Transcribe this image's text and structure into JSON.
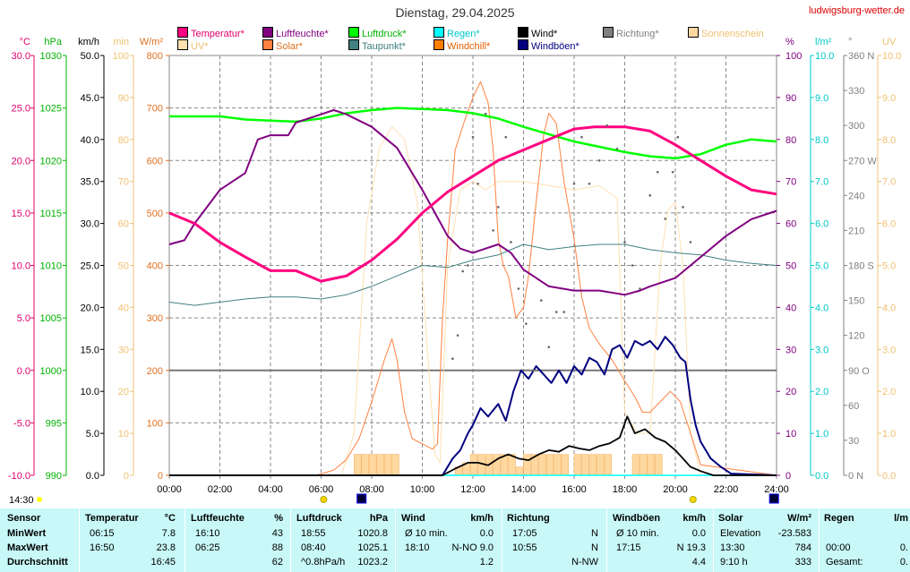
{
  "title": "Dienstag, 29.04.2025",
  "site": "ludwigsburg-wetter.de",
  "axes": [
    {
      "unit": "°C",
      "color": "#e0006e",
      "ticks": [
        "30.0",
        "25.0",
        "20.0",
        "15.0",
        "10.0",
        "5.0",
        "0.0",
        "-5.0",
        "-10.0"
      ]
    },
    {
      "unit": "hPa",
      "color": "#00b000",
      "ticks": [
        "1030",
        "1025",
        "1020",
        "1015",
        "1010",
        "1005",
        "1000",
        "995",
        "990"
      ]
    },
    {
      "unit": "km/h",
      "color": "#000000",
      "ticks": [
        "50.0",
        "45.0",
        "40.0",
        "35.0",
        "30.0",
        "25.0",
        "20.0",
        "15.0",
        "10.0",
        "5.0",
        "0.0"
      ]
    },
    {
      "unit": "min",
      "color": "#f0c070",
      "ticks": [
        "100",
        "90",
        "80",
        "70",
        "60",
        "50",
        "40",
        "30",
        "20",
        "10",
        "0"
      ]
    },
    {
      "unit": "W/m²",
      "color": "#e07020",
      "ticks": [
        "800",
        "700",
        "600",
        "500",
        "400",
        "300",
        "200",
        "100",
        "0"
      ]
    },
    {
      "unit": "%",
      "color": "#800080",
      "ticks": [
        "100",
        "90",
        "80",
        "70",
        "60",
        "50",
        "40",
        "30",
        "20",
        "10",
        "0"
      ]
    },
    {
      "unit": "l/m²",
      "color": "#00c8c8",
      "ticks": [
        "10.0",
        "9.0",
        "8.0",
        "7.0",
        "6.0",
        "5.0",
        "4.0",
        "3.0",
        "2.0",
        "1.0",
        "0.0"
      ]
    },
    {
      "unit": "°",
      "color": "#808080",
      "ticks": [
        "360 N",
        "330",
        "300",
        "270 W",
        "240",
        "210",
        "180 S",
        "150",
        "120",
        "90 O",
        "60",
        "30",
        "0 N"
      ]
    },
    {
      "unit": "UV",
      "color": "#f0c070",
      "ticks": [
        "10.0",
        "9.0",
        "8.0",
        "7.0",
        "6.0",
        "5.0",
        "4.0",
        "3.0",
        "2.0",
        "1.0",
        "0.0"
      ]
    }
  ],
  "xticks": [
    "00:00",
    "02:00",
    "04:00",
    "06:00",
    "08:00",
    "10:00",
    "12:00",
    "14:00",
    "16:00",
    "18:00",
    "20:00",
    "22:00",
    "24:00"
  ],
  "corner_time": "14:30",
  "legend": [
    {
      "label": "Temperatur*",
      "color": "#ff0080",
      "text": "#e0006e"
    },
    {
      "label": "Luftfeuchte*",
      "color": "#800080",
      "text": "#800080"
    },
    {
      "label": "Luftdruck*",
      "color": "#00ff00",
      "text": "#00b000"
    },
    {
      "label": "Regen*",
      "color": "#00ffff",
      "text": "#00c8c8"
    },
    {
      "label": "Wind*",
      "color": "#000000",
      "text": "#000000"
    },
    {
      "label": "Richtung*",
      "color": "#808080",
      "text": "#808080"
    },
    {
      "label": "Sonnenschein",
      "color": "#ffd8a0",
      "text": "#f0c070"
    },
    {
      "label": "UV*",
      "color": "#ffe0b0",
      "text": "#f0c070"
    },
    {
      "label": "Solar*",
      "color": "#ff8040",
      "text": "#e07020"
    },
    {
      "label": "Taupunkt*",
      "color": "#408080",
      "text": "#408080"
    },
    {
      "label": "Windchill*",
      "color": "#ff8000",
      "text": "#e06000"
    },
    {
      "label": "Windböen*",
      "color": "#000080",
      "text": "#000080"
    }
  ],
  "chart_data": {
    "type": "line",
    "x_unit": "hour",
    "xlim": [
      0,
      24
    ],
    "series": [
      {
        "name": "Temperatur",
        "color": "#ff0080",
        "axis": "°C",
        "ylim": [
          -10,
          30
        ],
        "x": [
          0,
          1,
          2,
          3,
          4,
          5,
          6,
          7,
          8,
          9,
          10,
          11,
          12,
          13,
          14,
          15,
          16,
          16.8,
          18,
          19,
          20,
          21,
          22,
          23,
          24
        ],
        "values": [
          15.0,
          14.0,
          12.2,
          10.8,
          9.5,
          9.5,
          8.5,
          9.0,
          10.5,
          12.5,
          15.0,
          17.0,
          18.5,
          20.0,
          21.0,
          22.0,
          23.0,
          23.2,
          23.2,
          22.8,
          21.5,
          20.0,
          18.5,
          17.2,
          16.8
        ]
      },
      {
        "name": "Luftfeuchte",
        "color": "#800080",
        "axis": "%",
        "ylim": [
          0,
          100
        ],
        "x": [
          0,
          0.6,
          1,
          2,
          3,
          3.5,
          4,
          4.7,
          5,
          6,
          6.5,
          7,
          8,
          9,
          10,
          11,
          11.5,
          12,
          12.5,
          13,
          13.5,
          14,
          15,
          16,
          17,
          18,
          18.6,
          19,
          20,
          21,
          22,
          23,
          24
        ],
        "values": [
          55,
          56,
          60,
          68,
          72,
          80,
          81,
          81,
          84,
          86,
          87,
          86,
          83,
          78,
          68,
          57,
          54,
          53,
          54,
          55,
          53,
          49,
          45,
          44,
          44,
          43,
          44,
          45,
          47,
          52,
          57,
          61,
          63
        ]
      },
      {
        "name": "Luftdruck",
        "color": "#00ff00",
        "axis": "hPa",
        "ylim": [
          990,
          1030
        ],
        "x": [
          0,
          1,
          2,
          3,
          4,
          5,
          6,
          7,
          8,
          9,
          10,
          11,
          12,
          13,
          14,
          15,
          16,
          17,
          18,
          19,
          20,
          21,
          22,
          23,
          24
        ],
        "values": [
          1024.2,
          1024.2,
          1024.2,
          1023.9,
          1023.8,
          1023.7,
          1024.0,
          1024.5,
          1024.8,
          1025.0,
          1024.9,
          1024.8,
          1024.5,
          1024.0,
          1023.2,
          1022.5,
          1021.8,
          1021.3,
          1020.8,
          1020.4,
          1020.2,
          1020.6,
          1021.5,
          1022.0,
          1021.8
        ]
      },
      {
        "name": "Taupunkt",
        "color": "#408080",
        "axis": "°C",
        "ylim": [
          -10,
          30
        ],
        "x": [
          0,
          1,
          2,
          3,
          4,
          5,
          6,
          7,
          8,
          9,
          10,
          11,
          12,
          13,
          14,
          15,
          16,
          17,
          18,
          19,
          20,
          21,
          22,
          23,
          24
        ],
        "values": [
          6.5,
          6.2,
          6.5,
          6.8,
          7.0,
          7.0,
          6.8,
          7.2,
          8.0,
          9.0,
          10.0,
          9.8,
          10.5,
          11.0,
          12.0,
          11.5,
          11.8,
          12.0,
          12.0,
          11.5,
          11.2,
          11.0,
          10.5,
          10.2,
          10.0
        ]
      },
      {
        "name": "Solar",
        "color": "#ff8040",
        "axis": "W/m²",
        "ylim": [
          0,
          800
        ],
        "x": [
          0,
          5.8,
          6.5,
          7,
          7.5,
          8,
          8.5,
          8.8,
          9,
          9.3,
          9.6,
          10,
          10.4,
          10.6,
          10.8,
          11.0,
          11.3,
          11.7,
          12.0,
          12.3,
          12.6,
          12.8,
          13.0,
          13.2,
          13.4,
          13.7,
          14.0,
          14.2,
          14.5,
          14.8,
          15.0,
          15.3,
          15.6,
          16.0,
          16.3,
          16.6,
          17.0,
          17.5,
          18.0,
          18.4,
          18.7,
          19.0,
          19.4,
          19.8,
          20.2,
          20.6,
          21.0,
          24
        ],
        "values": [
          0,
          0,
          10,
          30,
          70,
          140,
          220,
          260,
          220,
          120,
          70,
          60,
          50,
          60,
          300,
          450,
          620,
          680,
          720,
          750,
          710,
          620,
          450,
          400,
          380,
          300,
          320,
          380,
          520,
          650,
          690,
          670,
          560,
          450,
          340,
          280,
          250,
          220,
          180,
          150,
          120,
          120,
          140,
          160,
          140,
          80,
          20,
          0
        ]
      },
      {
        "name": "UV",
        "color": "#ffe0b0",
        "axis": "UV",
        "ylim": [
          0,
          10
        ],
        "x": [
          0,
          6.8,
          7.3,
          7.8,
          8.3,
          8.8,
          9.3,
          9.8,
          10.2,
          10.5,
          10.7,
          11.0,
          11.5,
          12.0,
          12.5,
          13,
          14,
          15,
          16,
          17,
          17.7,
          18,
          18.5,
          19.0,
          19.4,
          19.7,
          20.0,
          20.3,
          20.6,
          21
        ],
        "values": [
          0,
          0,
          1.0,
          6.0,
          7.8,
          8.3,
          8.0,
          6.5,
          3.0,
          0.5,
          0.3,
          5.0,
          6.8,
          7.0,
          6.8,
          7.0,
          7.0,
          6.9,
          6.8,
          6.9,
          6.6,
          1.5,
          1.0,
          1.0,
          5.0,
          6.3,
          6.5,
          5.0,
          1.0,
          0
        ]
      },
      {
        "name": "Windböen",
        "color": "#000080",
        "axis": "km/h",
        "ylim": [
          0,
          50
        ],
        "x": [
          0,
          10.8,
          11.2,
          11.5,
          11.8,
          12.0,
          12.3,
          12.6,
          13.0,
          13.3,
          13.6,
          13.9,
          14.2,
          14.5,
          14.8,
          15.1,
          15.4,
          15.7,
          16.0,
          16.3,
          16.6,
          16.9,
          17.2,
          17.5,
          17.8,
          18.1,
          18.4,
          18.7,
          19.0,
          19.3,
          19.6,
          19.9,
          20.2,
          20.4,
          20.6,
          20.8,
          21.0,
          21.4,
          21.8,
          22.2,
          24
        ],
        "values": [
          0,
          0,
          2.0,
          3.0,
          5.0,
          6.0,
          8.0,
          7.0,
          8.5,
          6.5,
          10.0,
          12.5,
          11.5,
          13.0,
          12.0,
          11.0,
          12.5,
          11.0,
          13.0,
          12.0,
          14.0,
          13.5,
          12.0,
          15.0,
          15.5,
          14.0,
          16.0,
          15.5,
          16.0,
          15.0,
          16.5,
          15.5,
          14.0,
          13.5,
          9.0,
          6.0,
          4.0,
          2.0,
          1.0,
          0.2,
          0
        ]
      },
      {
        "name": "Wind",
        "color": "#000000",
        "axis": "km/h",
        "ylim": [
          0,
          50
        ],
        "x": [
          0,
          10.8,
          11.3,
          11.8,
          12.2,
          12.6,
          13.0,
          13.4,
          13.8,
          14.2,
          14.6,
          15.0,
          15.4,
          15.8,
          16.2,
          16.6,
          17.0,
          17.4,
          17.8,
          18.1,
          18.4,
          18.8,
          19.2,
          19.6,
          20.0,
          20.3,
          20.6,
          21.0,
          21.5,
          24
        ],
        "values": [
          0,
          0,
          0.8,
          1.5,
          1.5,
          1.2,
          2.0,
          2.5,
          2.0,
          1.8,
          2.5,
          3.0,
          2.8,
          3.5,
          3.2,
          3.0,
          3.5,
          3.8,
          4.5,
          7.0,
          5.0,
          5.5,
          4.5,
          4.0,
          3.0,
          2.0,
          1.0,
          0.5,
          0,
          0
        ]
      },
      {
        "name": "Regen",
        "color": "#00ffff",
        "axis": "l/m²",
        "ylim": [
          0,
          10
        ],
        "x": [
          0,
          24
        ],
        "values": [
          0,
          0
        ]
      }
    ],
    "direction_deg": {
      "x": [
        11.2,
        11.4,
        11.6,
        11.8,
        12.0,
        12.2,
        12.5,
        12.8,
        13.0,
        13.3,
        13.5,
        13.8,
        14.1,
        14.4,
        14.7,
        15.0,
        15.3,
        15.6,
        16.0,
        16.3,
        16.6,
        17.0,
        17.3,
        17.7,
        18.0,
        18.3,
        18.6,
        19.0,
        19.3,
        19.6,
        19.9,
        20.1,
        20.3,
        20.6
      ],
      "values": [
        100,
        120,
        175,
        180,
        290,
        250,
        310,
        210,
        230,
        290,
        200,
        160,
        130,
        90,
        150,
        110,
        140,
        140,
        250,
        290,
        250,
        270,
        300,
        280,
        200,
        180,
        160,
        240,
        260,
        220,
        260,
        290,
        230,
        200
      ]
    },
    "sunshine_min": {
      "x": [
        7.3,
        7.6,
        7.9,
        8.2,
        8.5,
        8.8,
        11.3,
        11.6,
        11.9,
        12.2,
        12.5,
        12.8,
        13.1,
        13.4,
        13.7,
        14.0,
        14.3,
        14.6,
        14.9,
        15.2,
        15.5,
        16.0,
        16.3,
        16.6,
        16.9,
        17.2,
        18.3,
        18.6,
        18.9,
        19.2
      ],
      "values": [
        5,
        5,
        5,
        5,
        5,
        5,
        2,
        3,
        5,
        5,
        5,
        5,
        5,
        5,
        2,
        5,
        5,
        5,
        5,
        5,
        5,
        5,
        5,
        5,
        5,
        5,
        5,
        5,
        5,
        5
      ]
    }
  },
  "table": {
    "headers": [
      "Sensor",
      "Temperatur",
      "°C",
      "Luftfeuchte",
      "%",
      "Luftdruck",
      "hPa",
      "Wind",
      "km/h",
      "Richtung",
      "",
      "Windböen",
      "km/h",
      "Solar",
      "W/m²",
      "Regen",
      "l/m"
    ],
    "rows": [
      {
        "label": "MinWert",
        "cells": [
          "06:15",
          "7.8",
          "16:10",
          "43",
          "18:55",
          "1020.8",
          "Ø 10 min.",
          "0.0",
          "17:05",
          "N",
          "Ø 10 min.",
          "0.0",
          "Elevation",
          "-23.583",
          "",
          ""
        ]
      },
      {
        "label": "MaxWert",
        "cells": [
          "16:50",
          "23.8",
          "06:25",
          "88",
          "08:40",
          "1025.1",
          "18:10",
          "N-NO 9.0",
          "10:55",
          "N",
          "17:15",
          "N 19.3",
          "13:30",
          "784",
          "00:00",
          "0."
        ]
      },
      {
        "label": "Durchschnitt",
        "cells": [
          "",
          "16:45",
          "",
          "62",
          "^0.8hPa/h",
          "1023.2",
          "",
          "1.2",
          "",
          "N-NW",
          "",
          "4.4",
          "9:10 h",
          "333",
          "Gesamt:",
          "0."
        ]
      }
    ]
  }
}
